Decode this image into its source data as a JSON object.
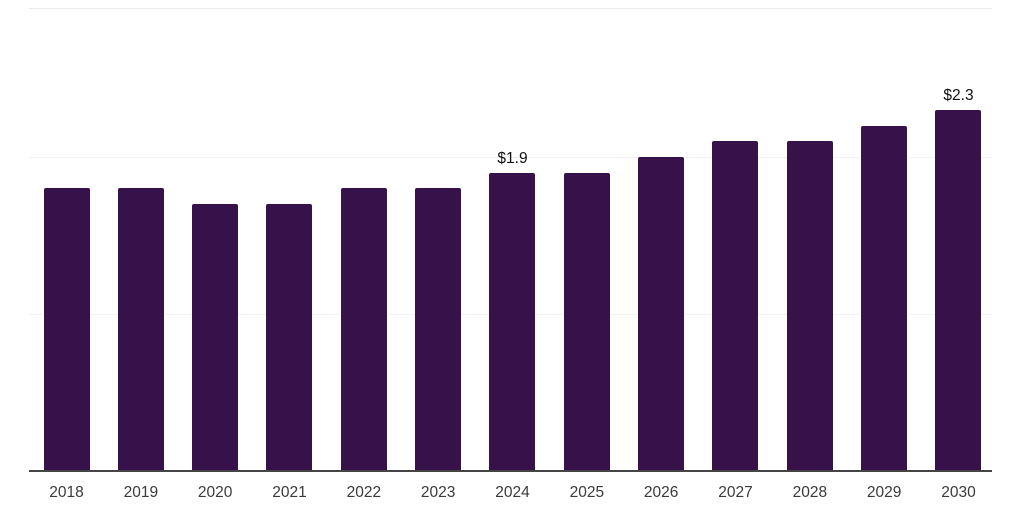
{
  "chart_data": {
    "type": "bar",
    "title": "",
    "xlabel": "",
    "ylabel": "",
    "categories": [
      "2018",
      "2019",
      "2020",
      "2021",
      "2022",
      "2023",
      "2024",
      "2025",
      "2026",
      "2027",
      "2028",
      "2029",
      "2030"
    ],
    "values": [
      1.8,
      1.8,
      1.7,
      1.7,
      1.8,
      1.8,
      1.9,
      1.9,
      2.0,
      2.1,
      2.1,
      2.2,
      2.3
    ],
    "data_labels": [
      "",
      "",
      "",
      "",
      "",
      "",
      "$1.9",
      "",
      "",
      "",
      "",
      "",
      "$2.3"
    ],
    "ylim": [
      0,
      2.95
    ],
    "grid": "horizontal",
    "gridline_values": [
      1.0,
      2.0
    ],
    "legend": "none",
    "colors": {
      "bar": "#36114A",
      "axis_line": "#454545",
      "gridline": "#f2f2f2",
      "top_border": "#ececec",
      "tick_label": "#3a3a3a",
      "data_label": "#111111"
    }
  }
}
